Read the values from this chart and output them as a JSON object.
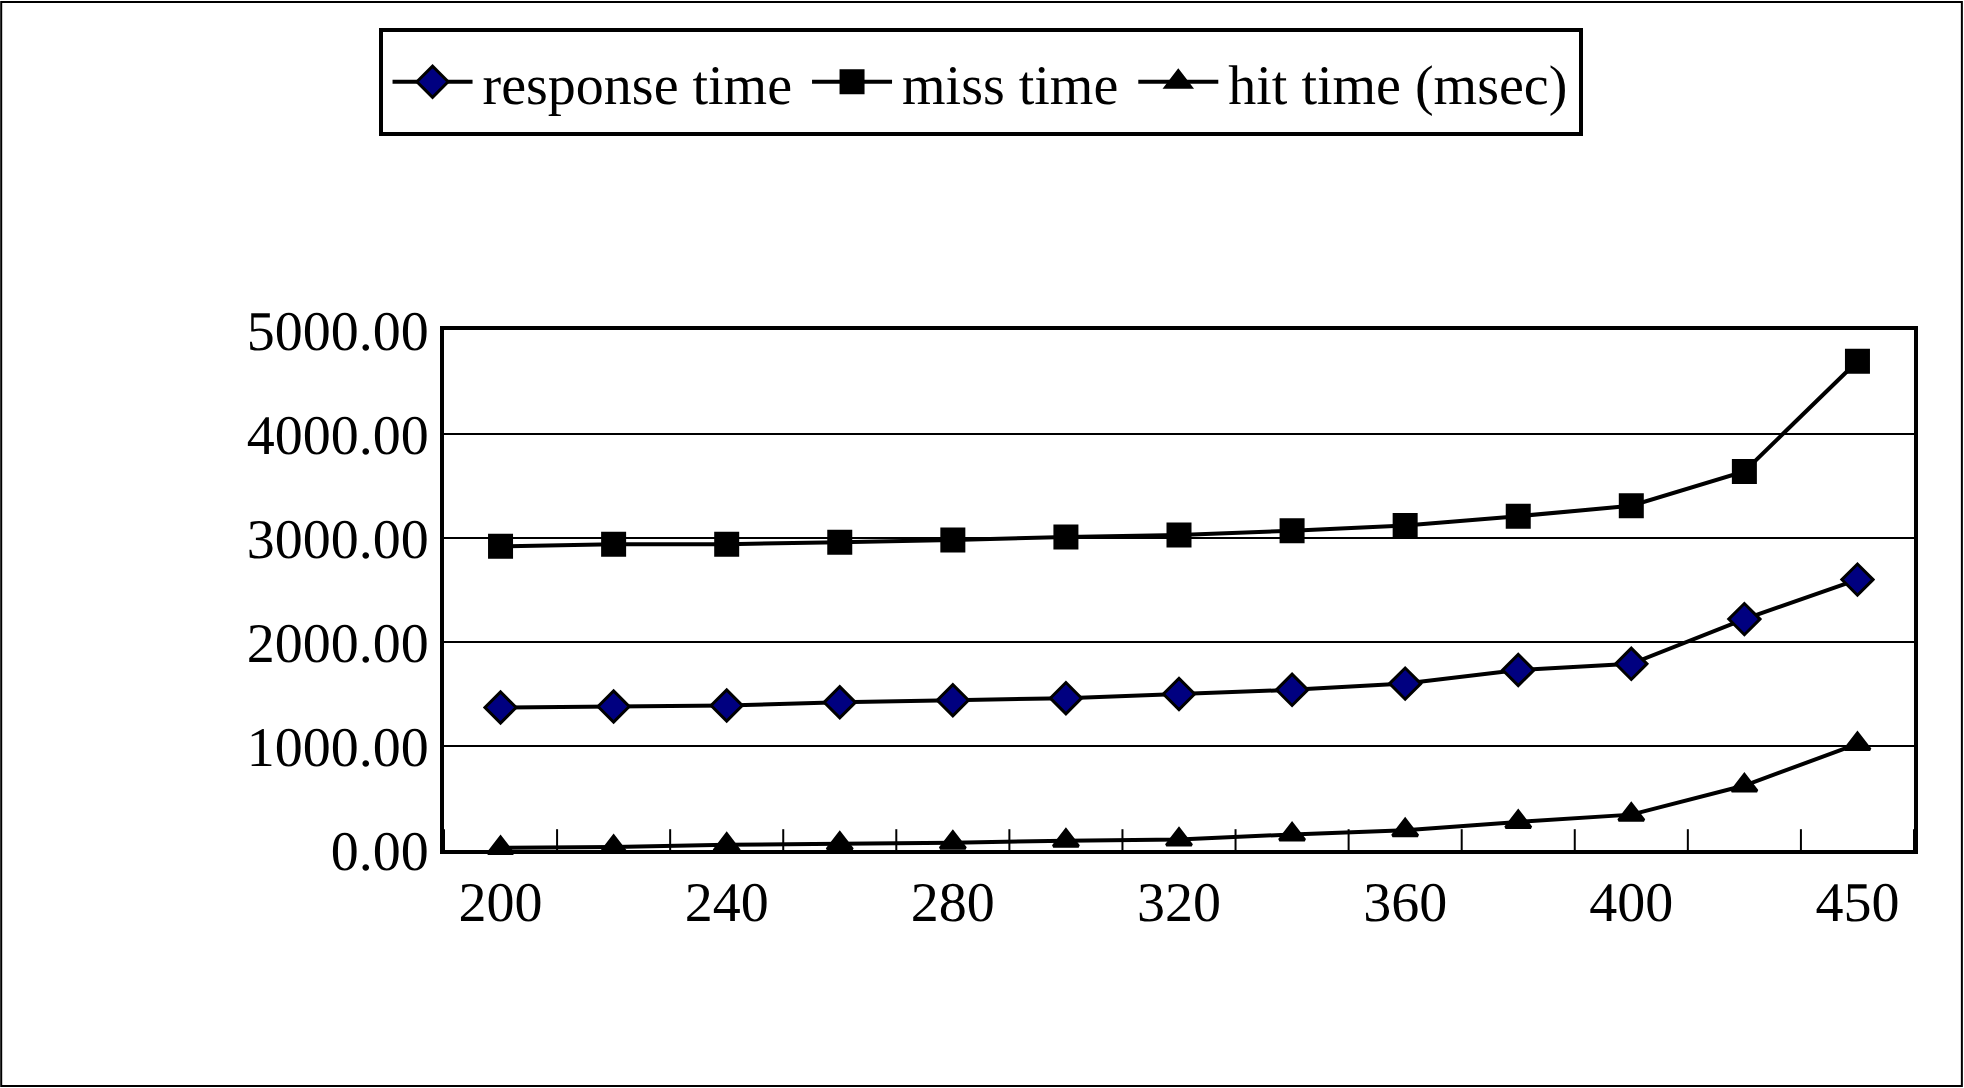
{
  "chart_data": {
    "type": "line",
    "categories": [
      "200",
      null,
      "240",
      null,
      "280",
      null,
      "320",
      null,
      "360",
      null,
      "400",
      null,
      "450"
    ],
    "series": [
      {
        "name": "response time",
        "color": "#000000",
        "marker": "diamond",
        "values": [
          1370,
          1380,
          1390,
          1420,
          1440,
          1460,
          1500,
          1540,
          1600,
          1730,
          1790,
          2220,
          2600
        ]
      },
      {
        "name": "miss time",
        "color": "#000000",
        "marker": "square",
        "values": [
          2920,
          2940,
          2940,
          2960,
          2980,
          3010,
          3030,
          3070,
          3120,
          3210,
          3310,
          3640,
          4700
        ]
      },
      {
        "name": "hit time (msec)",
        "color": "#000000",
        "marker": "triangle",
        "values": [
          20,
          30,
          50,
          60,
          70,
          90,
          100,
          150,
          190,
          270,
          340,
          620,
          1020
        ]
      }
    ],
    "ylim": [
      0,
      5000
    ],
    "yticks": [
      {
        "value": 0,
        "label": "0.00"
      },
      {
        "value": 1000,
        "label": "1000.00"
      },
      {
        "value": 2000,
        "label": "2000.00"
      },
      {
        "value": 3000,
        "label": "3000.00"
      },
      {
        "value": 4000,
        "label": "4000.00"
      },
      {
        "value": 5000,
        "label": "5000.00"
      }
    ],
    "grid": "y",
    "legend": "top",
    "line_style": "solid"
  }
}
